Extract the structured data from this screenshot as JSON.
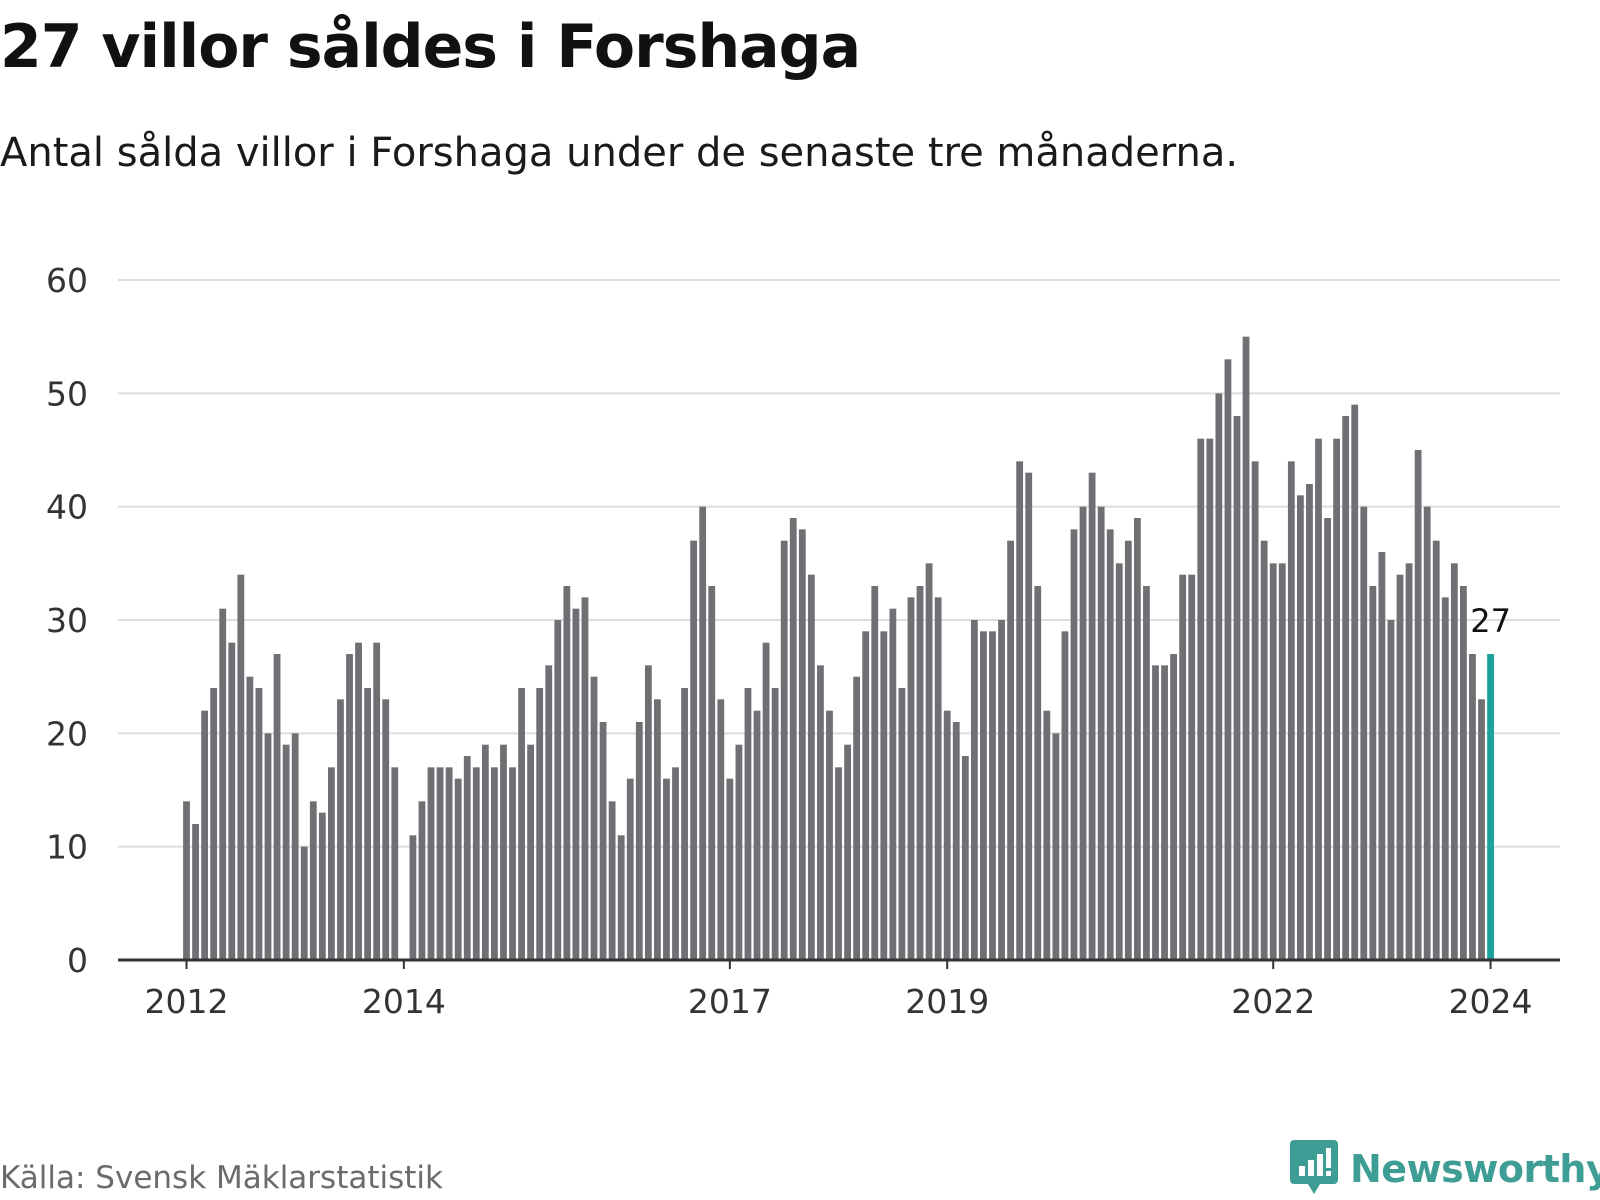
{
  "header": {
    "title": "27 villor såldes i Forshaga",
    "subtitle": "Antal sålda villor i Forshaga under de senaste tre månaderna."
  },
  "footer": {
    "source": "Källa: Svensk Mäklarstatistik",
    "brand": "Newsworthy"
  },
  "colors": {
    "bar": "#707074",
    "highlight": "#1aa39a",
    "grid": "#dddddd",
    "axis": "#333333",
    "brand": "#3e9e95"
  },
  "chart_data": {
    "type": "bar",
    "title": "27 villor såldes i Forshaga",
    "subtitle": "Antal sålda villor i Forshaga under de senaste tre månaderna.",
    "xlabel": "",
    "ylabel": "",
    "ylim": [
      0,
      60
    ],
    "yticks": [
      0,
      10,
      20,
      30,
      40,
      50,
      60
    ],
    "grid": true,
    "x_tick_labels": [
      {
        "label": "2012",
        "index": 0
      },
      {
        "label": "2014",
        "index": 24
      },
      {
        "label": "2017",
        "index": 60
      },
      {
        "label": "2019",
        "index": 84
      },
      {
        "label": "2022",
        "index": 120
      },
      {
        "label": "2024",
        "index": 144
      }
    ],
    "series": [
      {
        "name": "Antal sålda villor (rullande 3 månader)",
        "values": [
          14,
          12,
          22,
          24,
          31,
          28,
          34,
          25,
          24,
          20,
          27,
          19,
          20,
          10,
          14,
          13,
          17,
          23,
          27,
          28,
          24,
          28,
          23,
          17,
          null,
          11,
          14,
          17,
          17,
          17,
          16,
          18,
          17,
          19,
          17,
          19,
          17,
          24,
          19,
          24,
          26,
          30,
          33,
          31,
          32,
          25,
          21,
          14,
          11,
          16,
          21,
          26,
          23,
          16,
          17,
          24,
          37,
          40,
          33,
          23,
          16,
          19,
          24,
          22,
          28,
          24,
          37,
          39,
          38,
          34,
          26,
          22,
          17,
          19,
          25,
          29,
          33,
          29,
          31,
          24,
          32,
          33,
          35,
          32,
          22,
          21,
          18,
          30,
          29,
          29,
          30,
          37,
          44,
          43,
          33,
          22,
          20,
          29,
          38,
          40,
          43,
          40,
          38,
          35,
          37,
          39,
          33,
          26,
          26,
          27,
          34,
          34,
          46,
          46,
          50,
          53,
          48,
          55,
          44,
          37,
          35,
          35,
          44,
          41,
          42,
          46,
          39,
          46,
          48,
          49,
          40,
          33,
          36,
          30,
          34,
          35,
          45,
          40,
          37,
          32,
          35,
          33,
          27,
          23,
          27
        ]
      }
    ],
    "highlight_index": 144,
    "annotation": {
      "index": 144,
      "text": "27"
    }
  }
}
